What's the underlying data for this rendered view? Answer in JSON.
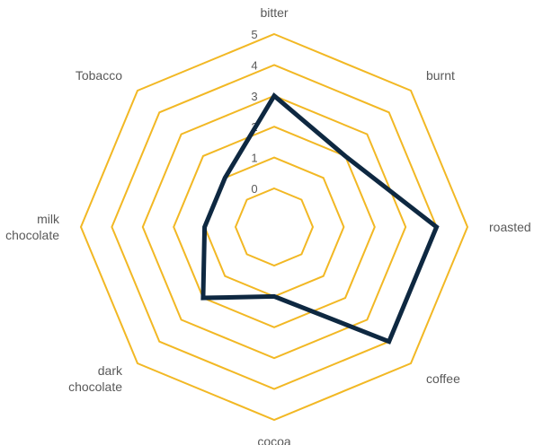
{
  "chart_data": {
    "type": "radar",
    "categories": [
      "bitter",
      "burnt",
      "roasted",
      "coffee",
      "cocoa",
      "dark chocolate",
      "milk chocolate",
      "Tobacco"
    ],
    "category_label_lines": [
      [
        "bitter"
      ],
      [
        "burnt"
      ],
      [
        "roasted"
      ],
      [
        "coffee"
      ],
      [
        "cocoa"
      ],
      [
        "dark",
        "chocolate"
      ],
      [
        "milk",
        "chocolate"
      ],
      [
        "Tobacco"
      ]
    ],
    "series": [
      {
        "values": [
          3,
          2,
          4,
          4,
          1,
          2,
          1,
          1
        ]
      }
    ],
    "r_ticks": [
      "0",
      "1",
      "2",
      "3",
      "4",
      "5"
    ],
    "rlim": [
      0,
      5
    ],
    "grid": true,
    "legend": "none",
    "colors": {
      "grid": "#F2B824",
      "series": "#0E2841",
      "text": "#595959"
    }
  }
}
